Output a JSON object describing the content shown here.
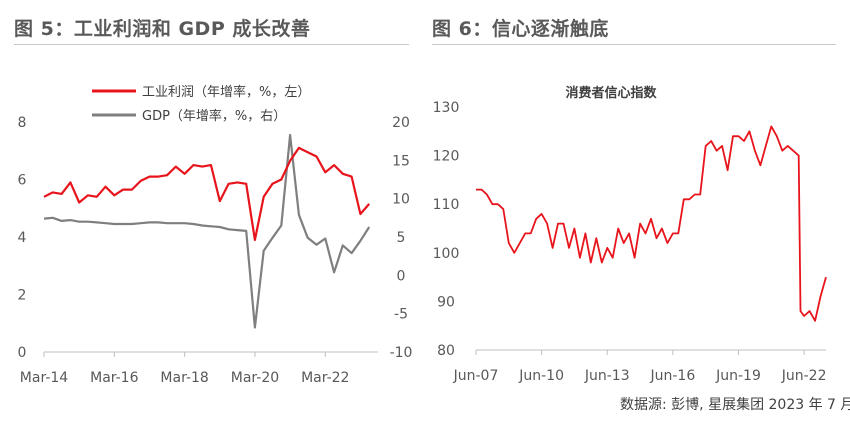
{
  "figure5": {
    "title": "图 5：工业利润和 GDP 成长改善"
  },
  "figure6": {
    "title": "图 6：信心逐渐触底"
  },
  "source": "数据源: 彭博, 星展集团 2023 年 7 月",
  "chart_data": [
    {
      "type": "line",
      "x_tick_labels": [
        "Mar-14",
        "Mar-16",
        "Mar-18",
        "Mar-20",
        "Mar-22"
      ],
      "x_range": [
        "2014-03",
        "2023-09"
      ],
      "y_left": {
        "ticks": [
          "0",
          "2",
          "4",
          "6",
          "8"
        ],
        "ylim": [
          0,
          8
        ]
      },
      "y_right": {
        "ticks": [
          "-10",
          "-5",
          "0",
          "5",
          "10",
          "15",
          "20"
        ],
        "ylim": [
          -10,
          20
        ]
      },
      "legend_position": "top-center",
      "series": [
        {
          "name": "工业利润（年增率，%，左）",
          "axis": "left",
          "color": "#e8141c",
          "x": [
            "2014-03",
            "2014-06",
            "2014-09",
            "2014-12",
            "2015-03",
            "2015-06",
            "2015-09",
            "2015-12",
            "2016-03",
            "2016-06",
            "2016-09",
            "2016-12",
            "2017-03",
            "2017-06",
            "2017-09",
            "2017-12",
            "2018-03",
            "2018-06",
            "2018-09",
            "2018-12",
            "2019-03",
            "2019-06",
            "2019-09",
            "2019-12",
            "2020-03",
            "2020-06",
            "2020-09",
            "2020-12",
            "2021-03",
            "2021-06",
            "2021-09",
            "2021-12",
            "2022-03",
            "2022-06",
            "2022-09",
            "2022-12",
            "2023-03",
            "2023-06"
          ],
          "values": [
            5.4,
            5.55,
            5.5,
            5.9,
            5.2,
            5.45,
            5.4,
            5.75,
            5.45,
            5.65,
            5.65,
            5.95,
            6.1,
            6.1,
            6.15,
            6.45,
            6.2,
            6.5,
            6.45,
            6.5,
            5.25,
            5.85,
            5.9,
            5.85,
            3.9,
            5.4,
            5.85,
            6.0,
            6.65,
            7.1,
            6.95,
            6.8,
            6.25,
            6.5,
            6.2,
            6.1,
            4.8,
            5.15
          ]
        },
        {
          "name": "GDP（年增率，%，右）",
          "axis": "right",
          "color": "#7f7f7f",
          "x": [
            "2014-03",
            "2014-06",
            "2014-09",
            "2014-12",
            "2015-03",
            "2015-06",
            "2015-09",
            "2015-12",
            "2016-03",
            "2016-06",
            "2016-09",
            "2016-12",
            "2017-03",
            "2017-06",
            "2017-09",
            "2017-12",
            "2018-03",
            "2018-06",
            "2018-09",
            "2018-12",
            "2019-03",
            "2019-06",
            "2019-09",
            "2019-12",
            "2020-03",
            "2020-06",
            "2020-09",
            "2020-12",
            "2021-03",
            "2021-06",
            "2021-09",
            "2021-12",
            "2022-03",
            "2022-06",
            "2022-09",
            "2022-12",
            "2023-03",
            "2023-06"
          ],
          "values": [
            7.4,
            7.5,
            7.1,
            7.2,
            7.0,
            7.0,
            6.9,
            6.8,
            6.7,
            6.7,
            6.7,
            6.8,
            6.9,
            6.9,
            6.8,
            6.8,
            6.8,
            6.7,
            6.5,
            6.4,
            6.3,
            6.0,
            5.9,
            5.8,
            -6.8,
            3.2,
            4.9,
            6.5,
            18.3,
            7.9,
            4.9,
            4.0,
            4.8,
            0.4,
            3.9,
            2.9,
            4.5,
            6.3
          ]
        }
      ]
    },
    {
      "type": "line",
      "title": "消费者信心指数",
      "x_tick_labels": [
        "Jun-07",
        "Jun-10",
        "Jun-13",
        "Jun-16",
        "Jun-19",
        "Jun-22"
      ],
      "x_range": [
        "2007-06",
        "2023-06"
      ],
      "y_ticks": [
        "80",
        "90",
        "100",
        "110",
        "120",
        "130"
      ],
      "ylim": [
        80,
        130
      ],
      "series": [
        {
          "name": "消费者信心指数",
          "color": "#e8141c",
          "x": [
            "2007-06",
            "2007-09",
            "2007-12",
            "2008-03",
            "2008-06",
            "2008-09",
            "2008-12",
            "2009-03",
            "2009-06",
            "2009-09",
            "2009-12",
            "2010-03",
            "2010-06",
            "2010-09",
            "2010-12",
            "2011-03",
            "2011-06",
            "2011-09",
            "2011-12",
            "2012-03",
            "2012-06",
            "2012-09",
            "2012-12",
            "2013-03",
            "2013-06",
            "2013-09",
            "2013-12",
            "2014-03",
            "2014-06",
            "2014-09",
            "2014-12",
            "2015-03",
            "2015-06",
            "2015-09",
            "2015-12",
            "2016-03",
            "2016-06",
            "2016-09",
            "2016-12",
            "2017-03",
            "2017-06",
            "2017-09",
            "2017-12",
            "2018-03",
            "2018-06",
            "2018-09",
            "2018-12",
            "2019-03",
            "2019-06",
            "2019-09",
            "2019-12",
            "2020-03",
            "2020-06",
            "2020-09",
            "2020-12",
            "2021-03",
            "2021-06",
            "2021-09",
            "2021-12",
            "2022-03",
            "2022-04",
            "2022-06",
            "2022-09",
            "2022-12",
            "2023-03",
            "2023-06"
          ],
          "values": [
            113,
            113,
            112,
            110,
            110,
            109,
            102,
            100,
            102,
            104,
            104,
            107,
            108,
            106,
            101,
            106,
            106,
            101,
            105,
            99,
            104,
            98,
            103,
            98,
            101,
            99,
            105,
            102,
            104,
            99,
            106,
            104,
            107,
            103,
            105,
            102,
            104,
            104,
            111,
            111,
            112,
            112,
            122,
            123,
            121,
            122,
            117,
            124,
            124,
            123,
            125,
            121,
            118,
            122,
            126,
            124,
            121,
            122,
            121,
            120,
            88,
            87,
            88,
            86,
            91,
            95
          ]
        }
      ]
    }
  ]
}
